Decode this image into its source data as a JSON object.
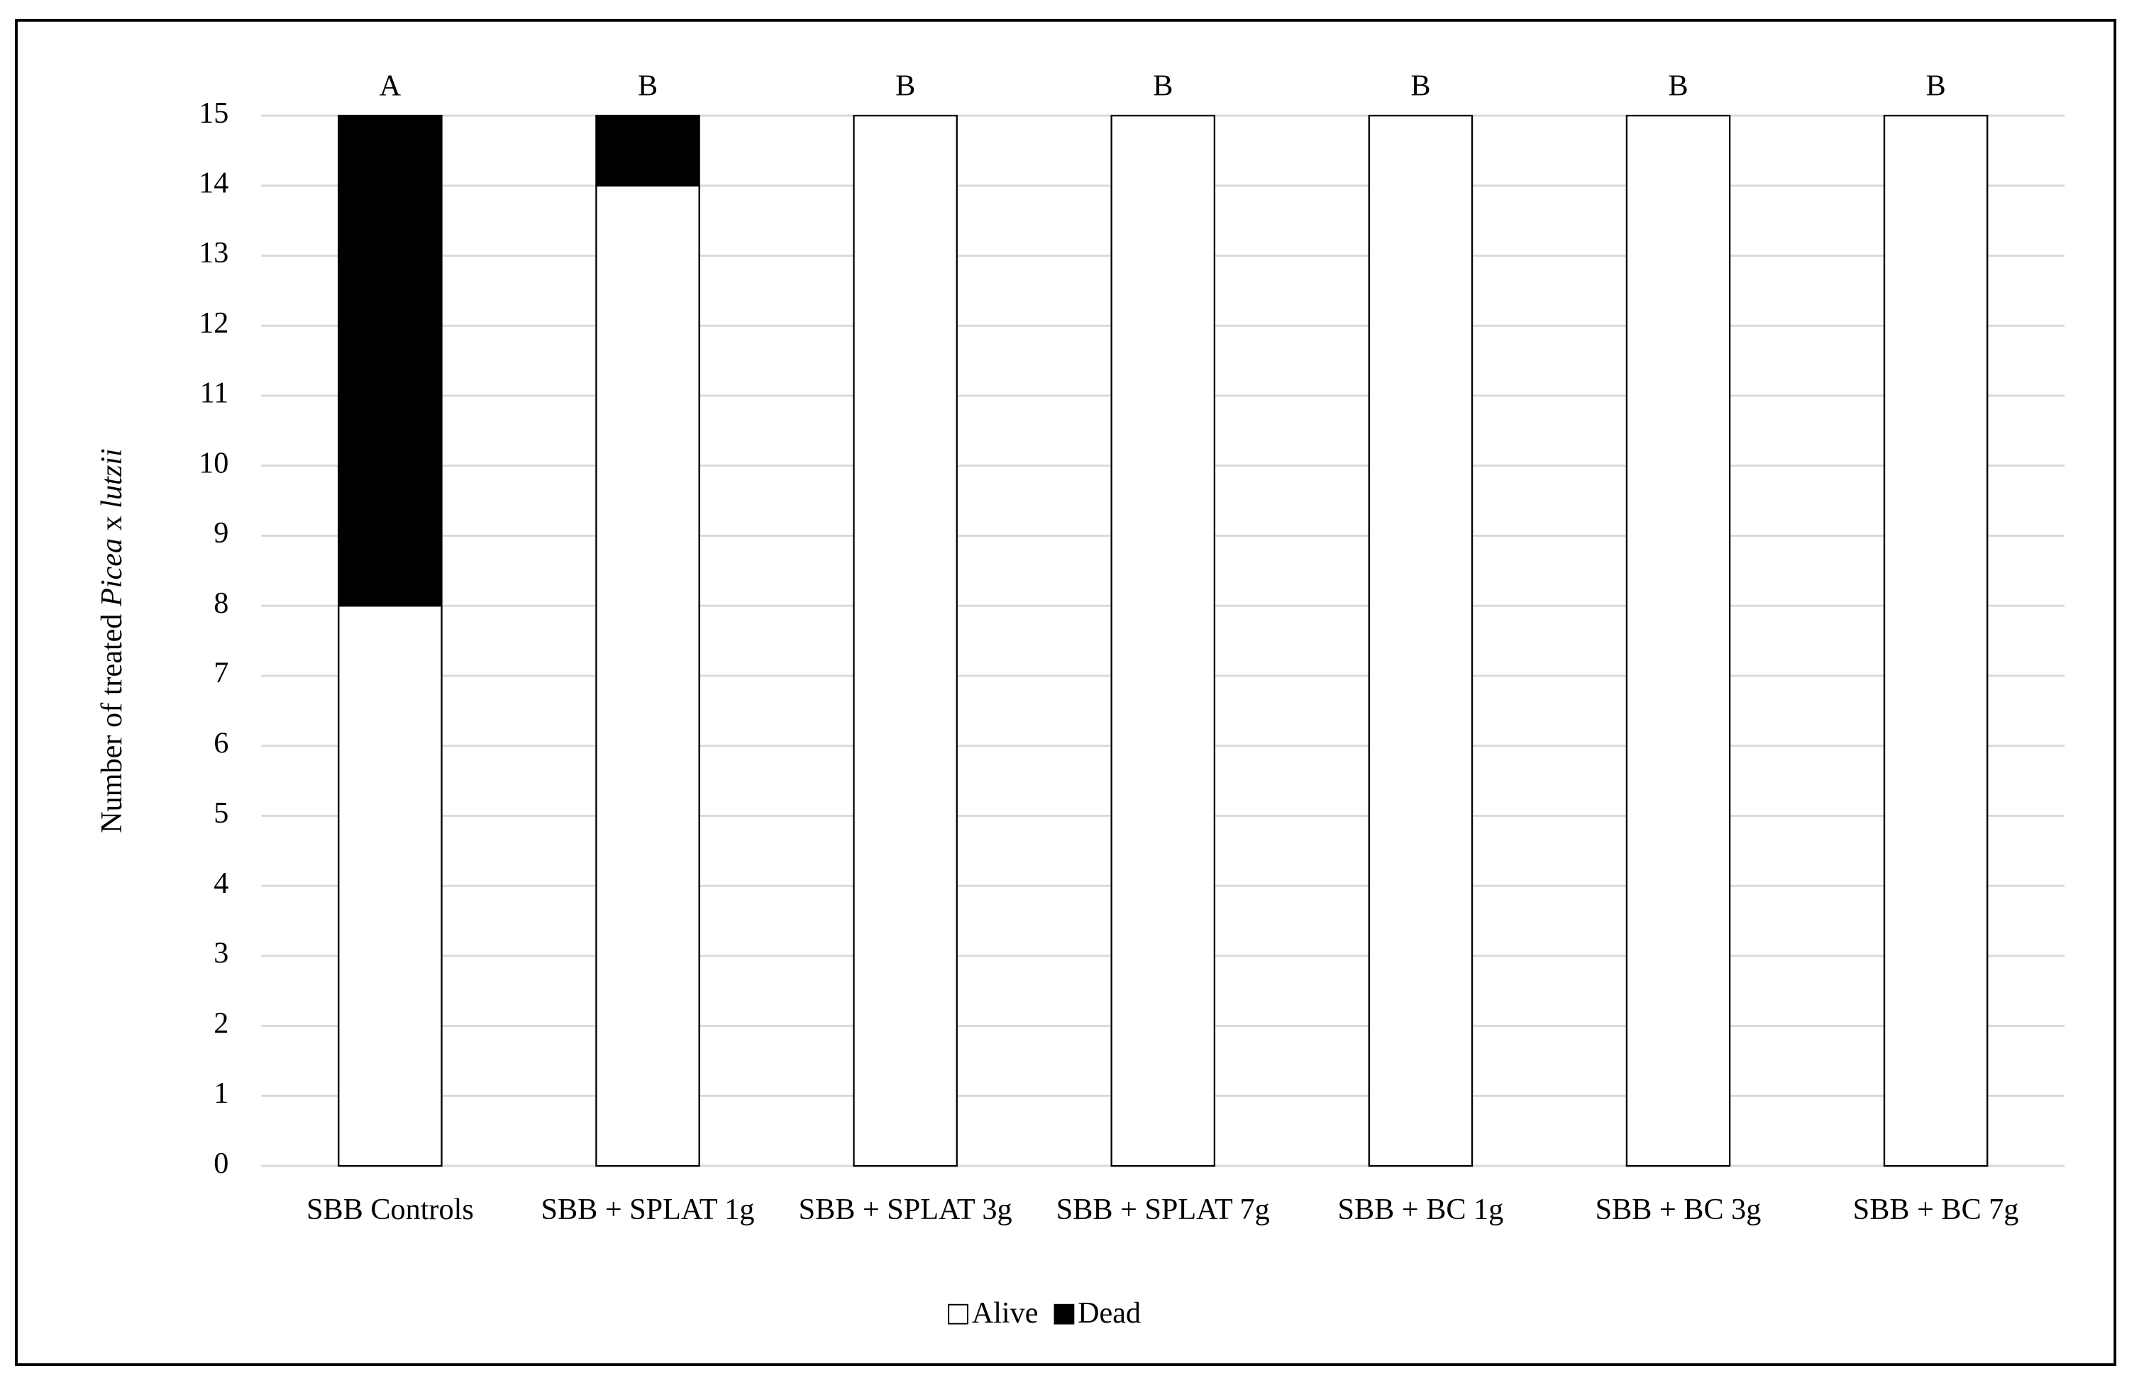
{
  "chart_data": {
    "type": "stacked-bar",
    "y_label": [
      "Number of treated ",
      "Picea",
      " x ",
      "lutzii"
    ],
    "categories": [
      "SBB Controls",
      "SBB + SPLAT 1g",
      "SBB + SPLAT 3g",
      "SBB + SPLAT 7g",
      "SBB + BC 1g",
      "SBB + BC 3g",
      "SBB + BC 7g"
    ],
    "annotations": [
      "A",
      "B",
      "B",
      "B",
      "B",
      "B",
      "B"
    ],
    "series": [
      {
        "name": "Alive",
        "color": "#ffffff",
        "values": [
          8,
          14,
          15,
          15,
          15,
          15,
          15
        ]
      },
      {
        "name": "Dead",
        "color": "#000000",
        "values": [
          7,
          1,
          0,
          0,
          0,
          0,
          0
        ]
      }
    ],
    "ylim": [
      0,
      15
    ],
    "yticks": [
      0,
      1,
      2,
      3,
      4,
      5,
      6,
      7,
      8,
      9,
      10,
      11,
      12,
      13,
      14,
      15
    ],
    "grid": true,
    "legend": "bottom"
  }
}
